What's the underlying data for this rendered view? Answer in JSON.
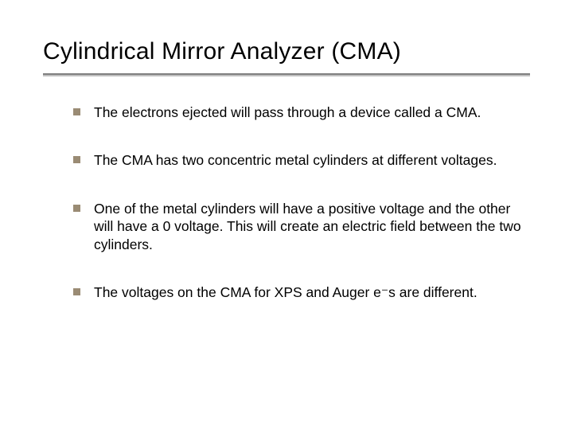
{
  "title": "Cylindrical Mirror Analyzer (CMA)",
  "bullets": [
    "The electrons ejected will pass through a device called a CMA.",
    "The CMA has two concentric metal cylinders at different voltages.",
    "One of the metal cylinders will have a positive voltage and the other will have a 0 voltage. This will create an electric field between the two cylinders.",
    "The voltages on the CMA for XPS and Auger e⁻s are different."
  ],
  "style": {
    "background_color": "#ffffff",
    "title_color": "#000000",
    "title_fontsize": 30,
    "body_color": "#000000",
    "body_fontsize": 17.5,
    "bullet_marker_color": "#9a8b74",
    "bullet_marker_size": 9,
    "rule_color": "#808080",
    "rule_shadow": "#c0c0c0",
    "font_family": "Verdana"
  }
}
